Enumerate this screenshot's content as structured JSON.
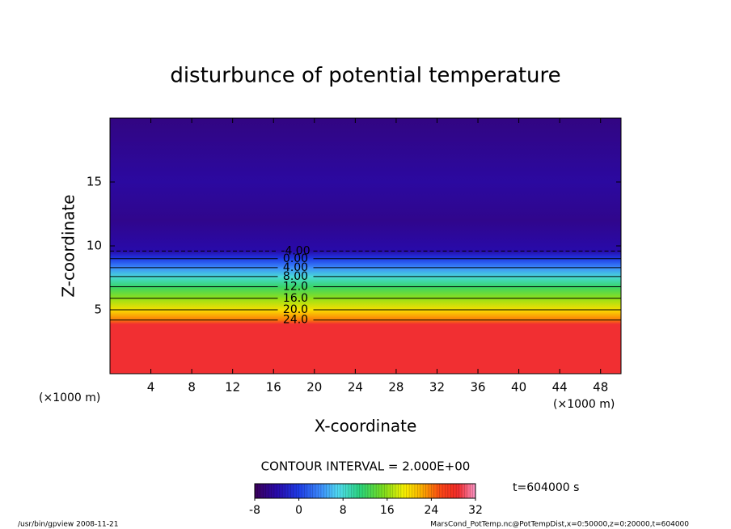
{
  "chart_data": {
    "type": "contour",
    "title": "disturbunce of potential temperature",
    "xlabel": "X-coordinate",
    "ylabel": "Z-coordinate",
    "x_unit_label": "(×1000 m)",
    "xlim": [
      0,
      50
    ],
    "xticks": [
      4,
      8,
      12,
      16,
      20,
      24,
      28,
      32,
      36,
      40,
      44,
      48
    ],
    "ylim": [
      0,
      20
    ],
    "yticks": [
      5,
      10,
      15
    ],
    "profile": {
      "z": [
        0,
        3.9,
        4.2,
        5.0,
        5.9,
        6.8,
        7.6,
        8.3,
        9.0,
        9.6,
        12,
        15,
        20
      ],
      "values": [
        29,
        29,
        24,
        20,
        16,
        12,
        8,
        4,
        0,
        -4,
        -5.5,
        -4.5,
        -6
      ]
    },
    "contour_levels": [
      {
        "value": -4,
        "label": "-4.00"
      },
      {
        "value": 0,
        "label": "0.00"
      },
      {
        "value": 4,
        "label": "4.00"
      },
      {
        "value": 8,
        "label": "8.00"
      },
      {
        "value": 12,
        "label": "12.0"
      },
      {
        "value": 16,
        "label": "16.0"
      },
      {
        "value": 20,
        "label": "20.0"
      },
      {
        "value": 24,
        "label": "24.0"
      }
    ],
    "contour_label_x": 18,
    "contour_interval_label": "CONTOUR INTERVAL = 2.000E+00",
    "time_label": "t=604000 s",
    "colorbar": {
      "lim": [
        -8,
        32
      ],
      "ticks": [
        -8,
        0,
        8,
        16,
        24,
        32
      ]
    },
    "footer_left": "/usr/bin/gpview   2008-11-21",
    "footer_right": "MarsCond_PotTemp.nc@PotTempDist,x=0:50000,z=0:20000,t=604000"
  }
}
